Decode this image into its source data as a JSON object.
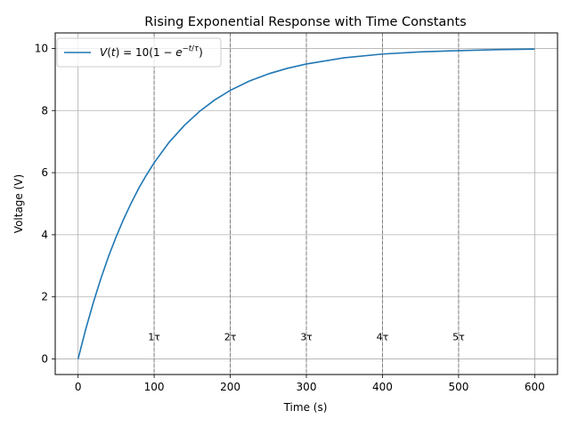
{
  "chart_data": {
    "type": "line",
    "title": "Rising Exponential Response with Time Constants",
    "xlabel": "Time (s)",
    "ylabel": "Voltage (V)",
    "xlim": [
      -30,
      630
    ],
    "ylim": [
      -0.5,
      10.5
    ],
    "xticks": [
      0,
      100,
      200,
      300,
      400,
      500,
      600
    ],
    "yticks": [
      0,
      2,
      4,
      6,
      8,
      10
    ],
    "grid": true,
    "legend_position": "top-left",
    "series": [
      {
        "name": "V(t) = 10(1 − e^(−t/τ))",
        "color": "#1f77b4",
        "x": [
          0,
          10,
          20,
          30,
          40,
          50,
          60,
          70,
          80,
          90,
          100,
          120,
          140,
          160,
          180,
          200,
          225,
          250,
          275,
          300,
          350,
          400,
          450,
          500,
          550,
          600
        ],
        "y": [
          0,
          0.95,
          1.81,
          2.59,
          3.3,
          3.93,
          4.51,
          5.03,
          5.51,
          5.93,
          6.32,
          6.99,
          7.53,
          7.98,
          8.35,
          8.65,
          8.95,
          9.18,
          9.36,
          9.5,
          9.7,
          9.82,
          9.89,
          9.93,
          9.96,
          9.98
        ]
      }
    ],
    "vlines": {
      "color": "#808080",
      "style": "dashed",
      "x": [
        100,
        200,
        300,
        400,
        500
      ]
    },
    "annotations": [
      {
        "x": 100,
        "y": 0.6,
        "text": "1τ"
      },
      {
        "x": 200,
        "y": 0.6,
        "text": "2τ"
      },
      {
        "x": 300,
        "y": 0.6,
        "text": "3τ"
      },
      {
        "x": 400,
        "y": 0.6,
        "text": "4τ"
      },
      {
        "x": 500,
        "y": 0.6,
        "text": "5τ"
      }
    ]
  }
}
